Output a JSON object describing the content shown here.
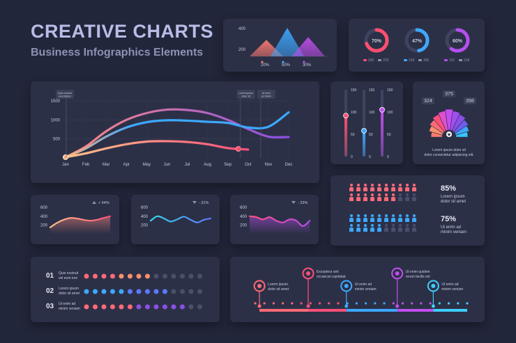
{
  "header": {
    "title": "CREATIVE CHARTS",
    "subtitle": "Business Infographics Elements"
  },
  "colors": {
    "background": "#22263a",
    "card": "#2c3047",
    "coral": "#ff7b72",
    "pink": "#ff4f7b",
    "purple": "#8b4fe6",
    "blue": "#3da8ff",
    "teal": "#39d6e8",
    "orange": "#ffb27a",
    "muted": "#4a4f6a"
  },
  "chart_data": [
    {
      "id": "triangles",
      "type": "area",
      "yticks": [
        "400",
        "200"
      ],
      "ylim": [
        0,
        400
      ],
      "series": [
        {
          "label": "20%",
          "peak": 230,
          "color": "#ff7b72"
        },
        {
          "label": "50%",
          "peak": 400,
          "color": "#3da8ff"
        },
        {
          "label": "30%",
          "peak": 270,
          "color": "#c24ff0"
        }
      ]
    },
    {
      "id": "donuts",
      "type": "pie",
      "items": [
        {
          "percent": 70,
          "label": "70%",
          "a": "265",
          "b": "378",
          "color": "#ff4f6e"
        },
        {
          "percent": 47,
          "label": "47%",
          "a": "134",
          "b": "395",
          "color": "#3da8ff"
        },
        {
          "percent": 60,
          "label": "60%",
          "a": "191",
          "b": "318",
          "color": "#b44ff0"
        }
      ]
    },
    {
      "id": "main-line",
      "type": "line",
      "categories": [
        "Jan",
        "Feb",
        "Mar",
        "Apr",
        "May",
        "Jun",
        "Jul",
        "Aug",
        "Sep",
        "Oct",
        "Nov",
        "Dec"
      ],
      "yticks": [
        "1500",
        "1000",
        "500"
      ],
      "ylim": [
        0,
        1500
      ],
      "series": [
        {
          "color": "#c24ff0",
          "values": [
            20,
            300,
            700,
            1000,
            1180,
            1270,
            1260,
            1180,
            1000,
            760,
            560,
            550
          ]
        },
        {
          "color": "#3da8ff",
          "values": [
            20,
            250,
            560,
            800,
            940,
            990,
            980,
            950,
            920,
            800,
            820,
            1200
          ]
        },
        {
          "color": "#ff8a80",
          "values": [
            20,
            120,
            250,
            360,
            430,
            440,
            420,
            360,
            260,
            220,
            0,
            0
          ]
        }
      ],
      "annotations": [
        {
          "text": "Quis nostrud exercitation",
          "category": "Jan"
        },
        {
          "text": "Lorem ipsum dolor sit",
          "category": "Oct"
        },
        {
          "text": "Ut enim ad minim",
          "category": "Nov"
        }
      ]
    },
    {
      "id": "vertical-sliders",
      "type": "bar",
      "ticks": [
        "150",
        "100",
        "50",
        "0"
      ],
      "ylim": [
        0,
        150
      ],
      "values": [
        92,
        58,
        105
      ],
      "colors": [
        "#ff4f6e",
        "#3da8ff",
        "#c24ff0"
      ]
    },
    {
      "id": "fan",
      "type": "bar",
      "labels": [
        "324",
        "375",
        "398"
      ],
      "caption_line1": "Lorem ipsum dolor sit",
      "caption_line2": "dolor consectetur adipiscing elit."
    },
    {
      "id": "mini-1",
      "type": "area",
      "yticks": [
        "600",
        "400",
        "200"
      ],
      "change": "+ 64%",
      "color": "#ff8a80",
      "values": [
        150,
        250,
        320,
        360,
        350,
        320,
        300,
        320,
        360,
        400
      ]
    },
    {
      "id": "mini-2",
      "type": "line",
      "yticks": [
        "600",
        "400",
        "200"
      ],
      "change": "- 21%",
      "color": "#3da8ff",
      "values": [
        300,
        400,
        350,
        280,
        330,
        390,
        320,
        260,
        320,
        350
      ]
    },
    {
      "id": "mini-3",
      "type": "area",
      "yticks": [
        "600",
        "400",
        "200"
      ],
      "change": "- 23%",
      "color": "#c24ff0",
      "values": [
        400,
        380,
        330,
        380,
        300,
        260,
        330,
        300,
        180,
        300
      ]
    },
    {
      "id": "people",
      "type": "bar",
      "groups": [
        {
          "percent": 85,
          "label": "85%",
          "line1": "Lorem ipsum",
          "line2": "dolor sit amet",
          "color": "#ff6a78"
        },
        {
          "percent": 75,
          "label": "75%",
          "line1": "Ut enim ad",
          "line2": "minim veniam",
          "color": "#3da8ff"
        }
      ]
    },
    {
      "id": "dot-rows",
      "type": "bar",
      "rows": [
        {
          "num": "01",
          "line1": "Quis nostrud",
          "line2": "vel eum iure",
          "filled": 8,
          "total": 14,
          "color": "#ff6a78"
        },
        {
          "num": "02",
          "line1": "Lorem ipsum",
          "line2": "dolor sit amet",
          "filled": 10,
          "total": 14,
          "color": "#3da8ff"
        },
        {
          "num": "03",
          "line1": "Ut enim ad",
          "line2": "minim veniam",
          "filled": 12,
          "total": 14,
          "color": "#ff6a78"
        }
      ]
    },
    {
      "id": "timeline",
      "type": "line",
      "events": [
        {
          "line1": "Lorem ipsum",
          "line2": "dolor sit amet",
          "color": "#ff6a78",
          "icon": "person-icon",
          "pos": 0.02,
          "high": false
        },
        {
          "line1": "Excepteur sint",
          "line2": "occaecat cupidatat",
          "color": "#ff4f7b",
          "icon": "dollar-icon",
          "pos": 0.25,
          "high": true
        },
        {
          "line1": "Ut enim ad",
          "line2": "minim veniam",
          "color": "#3da8ff",
          "icon": "money-icon",
          "pos": 0.43,
          "high": false
        },
        {
          "line1": "Ut enim quidem",
          "line2": "rerum facilis est",
          "color": "#c24ff0",
          "icon": "gear-icon",
          "pos": 0.67,
          "high": true
        },
        {
          "line1": "Ut enim ad",
          "line2": "minim veniam",
          "color": "#3dcfff",
          "icon": "money-bag-icon",
          "pos": 0.84,
          "high": false
        }
      ]
    }
  ]
}
